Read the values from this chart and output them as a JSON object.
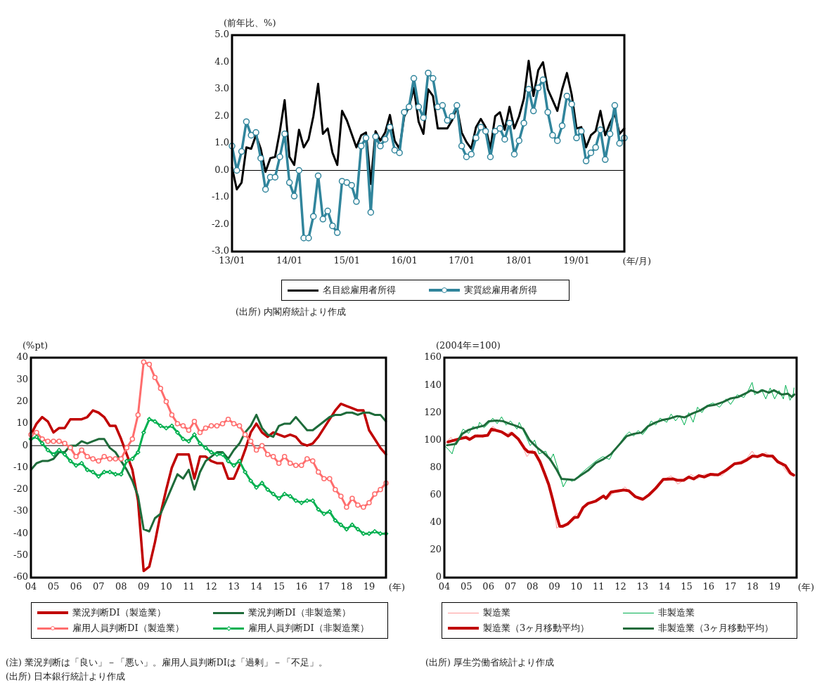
{
  "chart_data": [
    {
      "type": "line",
      "ylabel": "(前年比、%)",
      "xlabel": "(年/月)",
      "categories": [
        "13/01",
        null,
        null,
        null,
        null,
        null,
        null,
        null,
        null,
        null,
        null,
        null,
        "14/01",
        null,
        null,
        null,
        null,
        null,
        null,
        null,
        null,
        null,
        null,
        null,
        "15/01",
        null,
        null,
        null,
        null,
        null,
        null,
        null,
        null,
        null,
        null,
        null,
        "16/01",
        null,
        null,
        null,
        null,
        null,
        null,
        null,
        null,
        null,
        null,
        null,
        "17/01",
        null,
        null,
        null,
        null,
        null,
        null,
        null,
        null,
        null,
        null,
        null,
        "18/01",
        null,
        null,
        null,
        null,
        null,
        null,
        null,
        null,
        null,
        null,
        null,
        "19/01",
        null,
        null,
        null,
        null,
        null,
        null,
        null,
        null,
        null,
        null
      ],
      "ylim": [
        -3,
        5
      ],
      "yticks": [
        {
          "value": -3,
          "label": "-3.0"
        },
        {
          "value": -2,
          "label": "-2.0"
        },
        {
          "value": -1,
          "label": "-1.0"
        },
        {
          "value": 0,
          "label": "0.0"
        },
        {
          "value": 1,
          "label": "1.0"
        },
        {
          "value": 2,
          "label": "2.0"
        },
        {
          "value": 3,
          "label": "3.0"
        },
        {
          "value": 4,
          "label": "4.0"
        },
        {
          "value": 5,
          "label": "5.0"
        }
      ],
      "grid": false,
      "legend": "bottom",
      "ref_lines": [
        {
          "axis": "y",
          "value": 0,
          "color": "#000000"
        }
      ],
      "annotations": [
        "(出所) 内閣府統計より作成"
      ],
      "series": [
        {
          "name": "名目総雇用者所得",
          "color": "#000000",
          "marker": "none",
          "values": [
            0.1,
            -0.7,
            -0.45,
            0.85,
            0.8,
            1.3,
            0.8,
            -0.05,
            0.45,
            0.5,
            1.45,
            2.6,
            0.5,
            0.2,
            1.5,
            0.85,
            1.15,
            2.0,
            3.2,
            1.35,
            1.55,
            0.65,
            0.2,
            2.2,
            1.85,
            1.35,
            0.85,
            1.3,
            1.4,
            -0.5,
            1.45,
            1.1,
            1.4,
            2.05,
            1.1,
            0.8,
            2.0,
            2.35,
            3.05,
            1.8,
            1.35,
            3.0,
            2.75,
            1.55,
            1.55,
            1.55,
            1.85,
            2.35,
            1.4,
            1.05,
            0.8,
            1.6,
            1.9,
            1.6,
            0.8,
            2.0,
            2.15,
            1.5,
            2.35,
            1.55,
            2.0,
            2.65,
            4.05,
            2.75,
            3.7,
            4.0,
            3.0,
            2.6,
            2.2,
            3.0,
            3.6,
            2.8,
            1.55,
            1.6,
            0.85,
            1.3,
            1.45,
            2.2,
            1.3,
            1.75,
            2.1,
            1.35,
            1.55
          ]
        },
        {
          "name": "実質総雇用者所得",
          "color": "#31859c",
          "marker": "circle",
          "values": [
            0.9,
            0.0,
            0.7,
            1.8,
            1.3,
            1.4,
            0.45,
            -0.7,
            -0.25,
            -0.25,
            0.5,
            1.35,
            -0.45,
            -0.95,
            0.0,
            -2.5,
            -2.5,
            -1.7,
            -0.2,
            -1.8,
            -1.5,
            -2.05,
            -2.3,
            -0.4,
            -0.45,
            -0.55,
            -1.15,
            0.9,
            1.2,
            -1.55,
            1.25,
            0.9,
            1.15,
            1.6,
            0.75,
            0.65,
            2.15,
            2.35,
            3.4,
            2.35,
            1.95,
            3.6,
            3.4,
            2.35,
            2.4,
            1.85,
            2.0,
            2.4,
            0.9,
            0.5,
            0.6,
            1.2,
            1.6,
            1.45,
            0.5,
            1.45,
            1.55,
            1.15,
            1.75,
            0.6,
            1.1,
            1.75,
            3.0,
            2.2,
            3.05,
            3.35,
            2.15,
            1.3,
            1.1,
            1.65,
            2.75,
            2.45,
            1.2,
            1.45,
            0.35,
            0.65,
            0.85,
            1.5,
            0.4,
            1.35,
            2.4,
            1.0,
            1.2
          ]
        }
      ]
    },
    {
      "type": "line",
      "ylabel": "(%pt)",
      "xlabel": "(年)",
      "categories": [
        "04",
        null,
        null,
        null,
        "05",
        null,
        null,
        null,
        "06",
        null,
        null,
        null,
        "07",
        null,
        null,
        null,
        "08",
        null,
        null,
        null,
        "09",
        null,
        null,
        null,
        "10",
        null,
        null,
        null,
        "11",
        null,
        null,
        null,
        "12",
        null,
        null,
        null,
        "13",
        null,
        null,
        null,
        "14",
        null,
        null,
        null,
        "15",
        null,
        null,
        null,
        "16",
        null,
        null,
        null,
        "17",
        null,
        null,
        null,
        "18",
        null,
        null,
        null,
        "19",
        null,
        null,
        null
      ],
      "ylim": [
        -60,
        40
      ],
      "yticks": [
        -60,
        -50,
        -40,
        -30,
        -20,
        -10,
        0,
        10,
        20,
        30,
        40
      ],
      "grid": false,
      "legend": "bottom",
      "ref_lines": [
        {
          "axis": "y",
          "value": 0,
          "color": "#000000"
        }
      ],
      "annotations": [
        "(注) 業況判断は「良い」－「悪い」。雇用人員判断DIは「過剰」－「不足」。",
        "(出所) 日本銀行統計より作成"
      ],
      "series": [
        {
          "name": "業況判断DI（製造業）",
          "color": "#c00000",
          "marker": "none",
          "values": [
            5,
            10,
            13,
            11,
            6,
            8,
            8,
            12,
            12,
            12,
            13,
            16,
            15,
            13,
            9,
            9,
            3,
            -4,
            -11,
            -25,
            -57,
            -55,
            -44,
            -31,
            -20,
            -10,
            -4,
            -4,
            -4,
            -15,
            -5,
            -5,
            -7,
            -8,
            -8,
            -15,
            -15,
            -9,
            -2,
            6,
            10,
            6,
            4,
            6,
            5,
            4,
            5,
            4,
            1,
            0,
            1,
            4,
            8,
            12,
            16,
            19,
            18,
            17,
            16,
            16,
            7,
            3,
            -1,
            -4
          ]
        },
        {
          "name": "業況判断DI（非製造業）",
          "color": "#1e6b3a",
          "marker": "none",
          "values": [
            -11,
            -8,
            -7,
            -7,
            -6,
            -3,
            -3,
            0,
            0,
            2,
            1,
            2,
            3,
            3,
            -1,
            -3,
            -7,
            -11,
            -16,
            -23,
            -38,
            -39,
            -33,
            -31,
            -25,
            -19,
            -13,
            -15,
            -11,
            -20,
            -12,
            -7,
            -5,
            -3,
            -3,
            -6,
            -2,
            1,
            6,
            9,
            14,
            8,
            5,
            4,
            9,
            10,
            10,
            13,
            10,
            7,
            7,
            9,
            11,
            13,
            14,
            14,
            15,
            15,
            14,
            15,
            15,
            14,
            14,
            11
          ]
        },
        {
          "name": "雇用人員判断DI（製造業）",
          "color": "#ff6d6d",
          "marker": "circle",
          "values": [
            5,
            6,
            3,
            2,
            2,
            2,
            1,
            -1,
            -5,
            -2,
            -5,
            -6,
            -7,
            -5,
            -6,
            -6,
            -6,
            -1,
            3,
            14,
            38,
            37,
            31,
            26,
            20,
            14,
            10,
            9,
            7,
            11,
            6,
            8,
            9,
            9,
            10,
            12,
            10,
            9,
            5,
            2,
            -2,
            0,
            -4,
            -5,
            -8,
            -5,
            -8,
            -9,
            -9,
            -6,
            -7,
            -12,
            -15,
            -15,
            -20,
            -23,
            -28,
            -24,
            -27,
            -28,
            -26,
            -22,
            -20,
            -17
          ]
        },
        {
          "name": "雇用人員判断DI（非製造業）",
          "color": "#00b050",
          "marker": "diamond",
          "values": [
            3,
            4,
            1,
            -2,
            -4,
            -2,
            -4,
            -7,
            -9,
            -8,
            -11,
            -12,
            -14,
            -12,
            -12,
            -13,
            -13,
            -7,
            -6,
            -3,
            6,
            12,
            11,
            9,
            8,
            9,
            6,
            3,
            2,
            5,
            1,
            -1,
            -3,
            -4,
            -4,
            -7,
            -9,
            -7,
            -12,
            -16,
            -19,
            -17,
            -20,
            -22,
            -24,
            -22,
            -23,
            -25,
            -26,
            -25,
            -25,
            -29,
            -31,
            -30,
            -34,
            -36,
            -38,
            -36,
            -38,
            -40,
            -40,
            -39,
            -40,
            -40
          ]
        }
      ]
    },
    {
      "type": "line",
      "ylabel": "(2004年=100)",
      "xlabel": "(年)",
      "xlim": [
        2004,
        2020
      ],
      "xticks": [
        {
          "value": 2004,
          "label": "04"
        },
        {
          "value": 2005,
          "label": "05"
        },
        {
          "value": 2006,
          "label": "06"
        },
        {
          "value": 2007,
          "label": "07"
        },
        {
          "value": 2008,
          "label": "08"
        },
        {
          "value": 2009,
          "label": "09"
        },
        {
          "value": 2010,
          "label": "10"
        },
        {
          "value": 2011,
          "label": "11"
        },
        {
          "value": 2012,
          "label": "12"
        },
        {
          "value": 2013,
          "label": "13"
        },
        {
          "value": 2014,
          "label": "14"
        },
        {
          "value": 2015,
          "label": "15"
        },
        {
          "value": 2016,
          "label": "16"
        },
        {
          "value": 2017,
          "label": "17"
        },
        {
          "value": 2018,
          "label": "18"
        },
        {
          "value": 2019,
          "label": "19"
        }
      ],
      "ylim": [
        0,
        160
      ],
      "yticks": [
        0,
        20,
        40,
        60,
        80,
        100,
        120,
        140,
        160
      ],
      "grid": false,
      "legend": "bottom",
      "annotations": [
        "(出所) 厚生労働省統計より作成"
      ],
      "series": [
        {
          "name": "製造業",
          "color": "#ff9999",
          "marker": "none",
          "x": [
            2004.0,
            2004.17,
            2004.3,
            2004.5,
            2004.75,
            2005.0,
            2005.25,
            2005.5,
            2005.75,
            2006.0,
            2006.2,
            2006.5,
            2006.8,
            2007.0,
            2007.2,
            2007.5,
            2007.75,
            2008.0,
            2008.25,
            2008.5,
            2008.75,
            2009.0,
            2009.1,
            2009.3,
            2009.6,
            2009.9,
            2010.2,
            2010.5,
            2010.9,
            2011.2,
            2011.4,
            2011.7,
            2012.0,
            2012.2,
            2012.5,
            2012.8,
            2013.0,
            2013.3,
            2013.6,
            2013.9,
            2014.3,
            2014.6,
            2014.9,
            2015.2,
            2015.5,
            2015.8,
            2016.2,
            2016.6,
            2016.9,
            2017.2,
            2017.5,
            2017.75,
            2017.98,
            2018.2,
            2018.6,
            2018.9,
            2019.2,
            2019.5,
            2019.75,
            2019.9
          ],
          "values": [
            97,
            100,
            102,
            98,
            101,
            103,
            101,
            104,
            102,
            105,
            110,
            106,
            104,
            106,
            103,
            97,
            88,
            93,
            85,
            78,
            66,
            52,
            36,
            38,
            40,
            45,
            48,
            54,
            56,
            60,
            57,
            62,
            63,
            66,
            61,
            57,
            56,
            61,
            66,
            71,
            74,
            68,
            71,
            75,
            72,
            75,
            76,
            74,
            79,
            83,
            85,
            87,
            92,
            87,
            91,
            87,
            85,
            78,
            74,
            75
          ]
        },
        {
          "name": "非製造業",
          "color": "#00b050",
          "marker": "none",
          "x": [
            2004.0,
            2004.2,
            2004.35,
            2004.5,
            2004.7,
            2004.85,
            2005.1,
            2005.3,
            2005.5,
            2005.6,
            2005.8,
            2006.0,
            2006.2,
            2006.4,
            2006.6,
            2006.8,
            2007.0,
            2007.3,
            2007.4,
            2007.7,
            2007.9,
            2008.1,
            2008.3,
            2008.6,
            2008.8,
            2008.95,
            2009.2,
            2009.4,
            2009.6,
            2009.8,
            2010.1,
            2010.3,
            2010.6,
            2010.9,
            2011.2,
            2011.5,
            2011.7,
            2011.9,
            2012.2,
            2012.4,
            2012.6,
            2012.8,
            2013.0,
            2013.2,
            2013.4,
            2013.6,
            2013.8,
            2014.1,
            2014.3,
            2014.5,
            2014.7,
            2014.9,
            2015.1,
            2015.3,
            2015.5,
            2015.7,
            2015.9,
            2016.2,
            2016.5,
            2016.8,
            2017.0,
            2017.3,
            2017.6,
            2017.8,
            2017.98,
            2018.1,
            2018.4,
            2018.6,
            2018.8,
            2019.0,
            2019.2,
            2019.4,
            2019.5,
            2019.7,
            2019.85,
            2019.88
          ],
          "values": [
            96,
            93,
            90,
            98,
            103,
            108,
            105,
            110,
            108,
            113,
            109,
            112,
            116,
            112,
            117,
            111,
            114,
            108,
            113,
            103,
            96,
            100,
            90,
            92,
            85,
            90,
            77,
            66,
            72,
            70,
            74,
            77,
            81,
            85,
            88,
            86,
            92,
            96,
            103,
            106,
            103,
            107,
            104,
            108,
            114,
            111,
            116,
            113,
            119,
            114,
            118,
            111,
            120,
            113,
            124,
            120,
            125,
            127,
            124,
            130,
            126,
            133,
            131,
            136,
            142,
            133,
            137,
            130,
            138,
            130,
            136,
            130,
            140,
            129,
            134,
            138
          ]
        },
        {
          "name": "製造業（3ヶ月移動平均）",
          "color": "#c00000",
          "marker": "none",
          "x": [
            2004.17,
            2004.7,
            2004.98,
            2005.15,
            2005.4,
            2005.73,
            2005.97,
            2006.14,
            2006.6,
            2006.9,
            2007.06,
            2007.35,
            2007.64,
            2007.8,
            2008.1,
            2008.34,
            2008.57,
            2008.74,
            2008.91,
            2009.09,
            2009.24,
            2009.38,
            2009.6,
            2009.9,
            2010.07,
            2010.3,
            2010.53,
            2010.7,
            2010.88,
            2011.23,
            2011.34,
            2011.57,
            2011.92,
            2012.15,
            2012.38,
            2012.67,
            2013.02,
            2013.3,
            2013.6,
            2013.94,
            2014.4,
            2014.58,
            2014.87,
            2015.1,
            2015.33,
            2015.56,
            2015.8,
            2016.08,
            2016.43,
            2016.78,
            2017.18,
            2017.47,
            2017.7,
            2017.99,
            2018.22,
            2018.45,
            2018.68,
            2018.91,
            2019.14,
            2019.49,
            2019.72,
            2019.87
          ],
          "values": [
            98.7,
            101,
            102,
            100.5,
            103,
            103,
            103.5,
            108,
            106,
            103,
            105,
            101,
            94,
            91.5,
            91,
            84.5,
            75,
            67.7,
            57.5,
            45.6,
            37.3,
            37.3,
            39,
            43.7,
            44,
            51,
            54,
            54.8,
            55.7,
            59.4,
            57.6,
            62.2,
            63.1,
            63.7,
            63.1,
            58.9,
            57,
            60.3,
            65,
            71.4,
            71.8,
            70.8,
            70.8,
            73.2,
            71.8,
            74.2,
            73.2,
            75.1,
            74.7,
            77.9,
            82.8,
            83.4,
            85.2,
            88.4,
            88,
            89.5,
            88.4,
            88.4,
            84.3,
            81.5,
            76,
            74.5
          ]
        },
        {
          "name": "非製造業（3ヶ月移動平均）",
          "color": "#1e6b3a",
          "marker": "none",
          "x": [
            2004.12,
            2004.52,
            2004.81,
            2005.1,
            2005.45,
            2005.8,
            2006.02,
            2006.37,
            2006.66,
            2006.95,
            2007.24,
            2007.58,
            2007.87,
            2008.22,
            2008.51,
            2008.8,
            2009.09,
            2009.32,
            2009.6,
            2009.9,
            2010.18,
            2010.53,
            2010.88,
            2011.23,
            2011.57,
            2011.92,
            2012.27,
            2012.61,
            2012.96,
            2013.25,
            2013.6,
            2013.94,
            2014.23,
            2014.58,
            2014.92,
            2015.27,
            2015.62,
            2015.97,
            2016.31,
            2016.66,
            2017.01,
            2017.35,
            2017.7,
            2017.93,
            2018.22,
            2018.45,
            2018.74,
            2018.97,
            2019.32,
            2019.61,
            2019.78,
            2019.9
          ],
          "values": [
            96.3,
            97.2,
            104.6,
            107.4,
            109.2,
            110.5,
            113.8,
            114.2,
            113.8,
            112,
            110.5,
            108.3,
            100,
            94.5,
            90.8,
            86.2,
            78.8,
            71.8,
            71.4,
            71,
            74.2,
            77.9,
            83.4,
            86.2,
            89.9,
            96.3,
            102.8,
            104.6,
            105.5,
            110.1,
            112.9,
            114.8,
            115.7,
            117.5,
            116.6,
            119.4,
            121.6,
            124.9,
            125.8,
            127.7,
            130.4,
            131.4,
            134.1,
            136.3,
            134.5,
            136.3,
            134.5,
            136.3,
            133.2,
            133.8,
            131.4,
            133.2
          ]
        }
      ]
    }
  ]
}
